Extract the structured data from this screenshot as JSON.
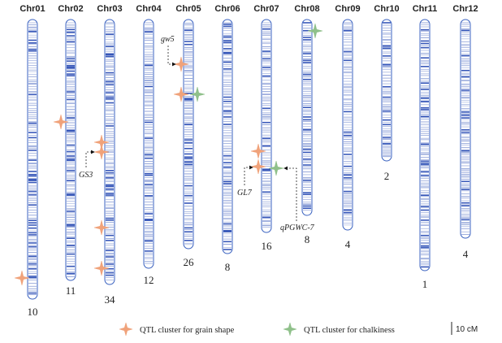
{
  "chromosomes": [
    {
      "label": "Chr01",
      "count": "10"
    },
    {
      "label": "Chr02",
      "count": "11"
    },
    {
      "label": "Chr03",
      "count": "34"
    },
    {
      "label": "Chr04",
      "count": "12"
    },
    {
      "label": "Chr05",
      "count": "26"
    },
    {
      "label": "Chr06",
      "count": "8"
    },
    {
      "label": "Chr07",
      "count": "16"
    },
    {
      "label": "Chr08",
      "count": "8"
    },
    {
      "label": "Chr09",
      "count": "4"
    },
    {
      "label": "Chr10",
      "count": "2"
    },
    {
      "label": "Chr11",
      "count": "1"
    },
    {
      "label": "Chr12",
      "count": "4"
    }
  ],
  "genes": [
    "gw5",
    "GS3",
    "GL7",
    "qPGWC-7"
  ],
  "legend": {
    "grain_shape": "QTL cluster for grain shape",
    "chalkiness": "QTL cluster for chalkiness"
  },
  "scale": "10 cM"
}
